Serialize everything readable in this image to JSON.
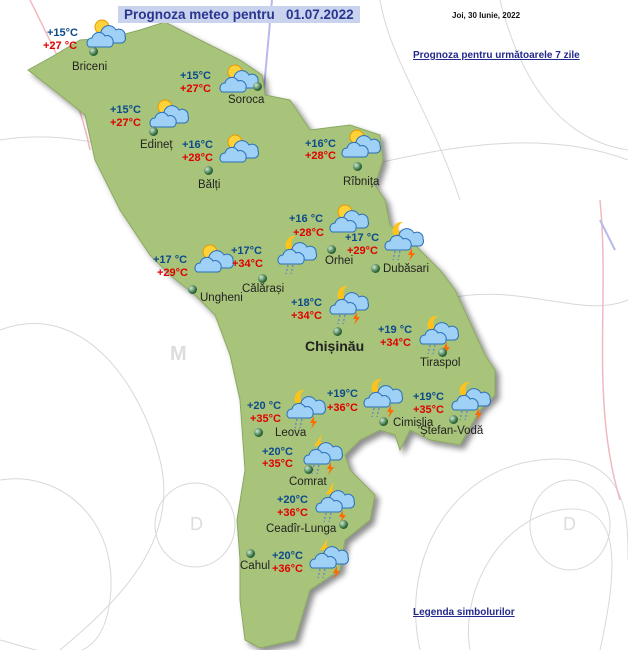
{
  "header": {
    "title": "Prognoza meteo pentru   01.07.2022",
    "current_date": "Joi, 30 Iunie, 2022"
  },
  "links": {
    "forecast_7_days": "Prognoza pentru următoarele 7 zile",
    "legend": "Legenda simbolurilor"
  },
  "colors": {
    "map_land": "#a8c47a",
    "min_temp": "#0b4a8c",
    "max_temp": "#e00000",
    "title_bg": "#c9d3ee"
  },
  "cities": [
    {
      "name": "Briceni",
      "min": "+15°C",
      "max": "+27 °C",
      "icon": "sun-cloud-icon"
    },
    {
      "name": "Soroca",
      "min": "+15°C",
      "max": "+27°C",
      "icon": "sun-cloud-icon"
    },
    {
      "name": "Edineț",
      "min": "+15°C",
      "max": "+27°C",
      "icon": "sun-cloud-icon"
    },
    {
      "name": "Bălți",
      "min": "+16°C",
      "max": "+28°C",
      "icon": "sun-cloud-icon"
    },
    {
      "name": "Rîbnița",
      "min": "+16°C",
      "max": "+28°C",
      "icon": "sun-cloud-icon"
    },
    {
      "name": "Orhei",
      "min": "+16 °C",
      "max": "+28°C",
      "icon": "sun-cloud-icon"
    },
    {
      "name": "Dubăsari",
      "min": "+17 °C",
      "max": "+29°C",
      "icon": "moon-thunderstorm-rain-icon"
    },
    {
      "name": "Ungheni",
      "min": "+17 °C",
      "max": "+29°C",
      "icon": "sun-cloud-icon"
    },
    {
      "name": "Călărași",
      "min": "+17°C",
      "max": "+34°C",
      "icon": "moon-cloud-rain-icon"
    },
    {
      "name": "Chișinău",
      "min": "+18°C",
      "max": "+34°C",
      "icon": "moon-thunderstorm-rain-icon"
    },
    {
      "name": "Tiraspol",
      "min": "+19 °C",
      "max": "+34°C",
      "icon": "moon-thunderstorm-rain-icon"
    },
    {
      "name": "Leova",
      "min": "+20 °C",
      "max": "+35°C",
      "icon": "moon-thunderstorm-rain-icon"
    },
    {
      "name": "Cimișlia",
      "min": "+19°C",
      "max": "+36°C",
      "icon": "moon-thunderstorm-rain-icon"
    },
    {
      "name": "Ștefan-Vodă",
      "min": "+19°C",
      "max": "+35°C",
      "icon": "moon-thunderstorm-rain-icon"
    },
    {
      "name": "Comrat",
      "min": "+20°C",
      "max": "+35°C",
      "icon": "lightning-thunderstorm-rain-icon"
    },
    {
      "name": "Ceadîr-Lunga",
      "min": "+20°C",
      "max": "+36°C",
      "icon": "lightning-thunderstorm-rain-icon"
    },
    {
      "name": "Cahul",
      "min": "+20°C",
      "max": "+36°C",
      "icon": "lightning-thunderstorm-rain-icon"
    }
  ]
}
